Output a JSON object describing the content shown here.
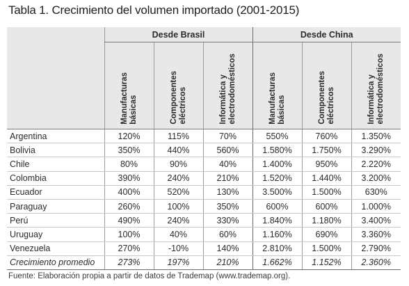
{
  "title": "Tabla 1. Crecimiento del volumen importado (2001-2015)",
  "groups": {
    "brasil": "Desde Brasil",
    "china": "Desde China"
  },
  "columns": {
    "b1": "Manufacturas\nbásicas",
    "b2": "Componentes\neléctricos",
    "b3": "Informática y\nelectrodomésticos",
    "c1": "Manufacturas\nbásicas",
    "c2": "Componentes\neléctricos",
    "c3": "Informática y\nelectrodomésticos"
  },
  "rows": [
    {
      "country": "Argentina",
      "values": [
        "120%",
        "115%",
        "70%",
        "550%",
        "760%",
        "1.350%"
      ]
    },
    {
      "country": "Bolivia",
      "values": [
        "350%",
        "440%",
        "560%",
        "1.580%",
        "1.750%",
        "3.290%"
      ]
    },
    {
      "country": "Chile",
      "values": [
        "80%",
        "90%",
        "40%",
        "1.400%",
        "950%",
        "2.220%"
      ]
    },
    {
      "country": "Colombia",
      "values": [
        "390%",
        "240%",
        "210%",
        "1.520%",
        "1.440%",
        "3.200%"
      ]
    },
    {
      "country": "Ecuador",
      "values": [
        "400%",
        "520%",
        "130%",
        "3.500%",
        "1.500%",
        "630%"
      ]
    },
    {
      "country": "Paraguay",
      "values": [
        "260%",
        "100%",
        "350%",
        "600%",
        "600%",
        "1.000%"
      ]
    },
    {
      "country": "Perú",
      "values": [
        "490%",
        "240%",
        "330%",
        "1.840%",
        "1.180%",
        "3.400%"
      ]
    },
    {
      "country": "Uruguay",
      "values": [
        "100%",
        "40%",
        "60%",
        "1.160%",
        "690%",
        "3.360%"
      ]
    },
    {
      "country": "Venezuela",
      "values": [
        "270%",
        "-10%",
        "140%",
        "2.810%",
        "1.500%",
        "2.790%"
      ]
    }
  ],
  "average": {
    "label": "Crecimiento promedio",
    "values": [
      "273%",
      "197%",
      "210%",
      "1.662%",
      "1.152%",
      "2.360%"
    ]
  },
  "source": "Fuente: Elaboración propia a partir de datos de Trademap (www.trademap.org)."
}
